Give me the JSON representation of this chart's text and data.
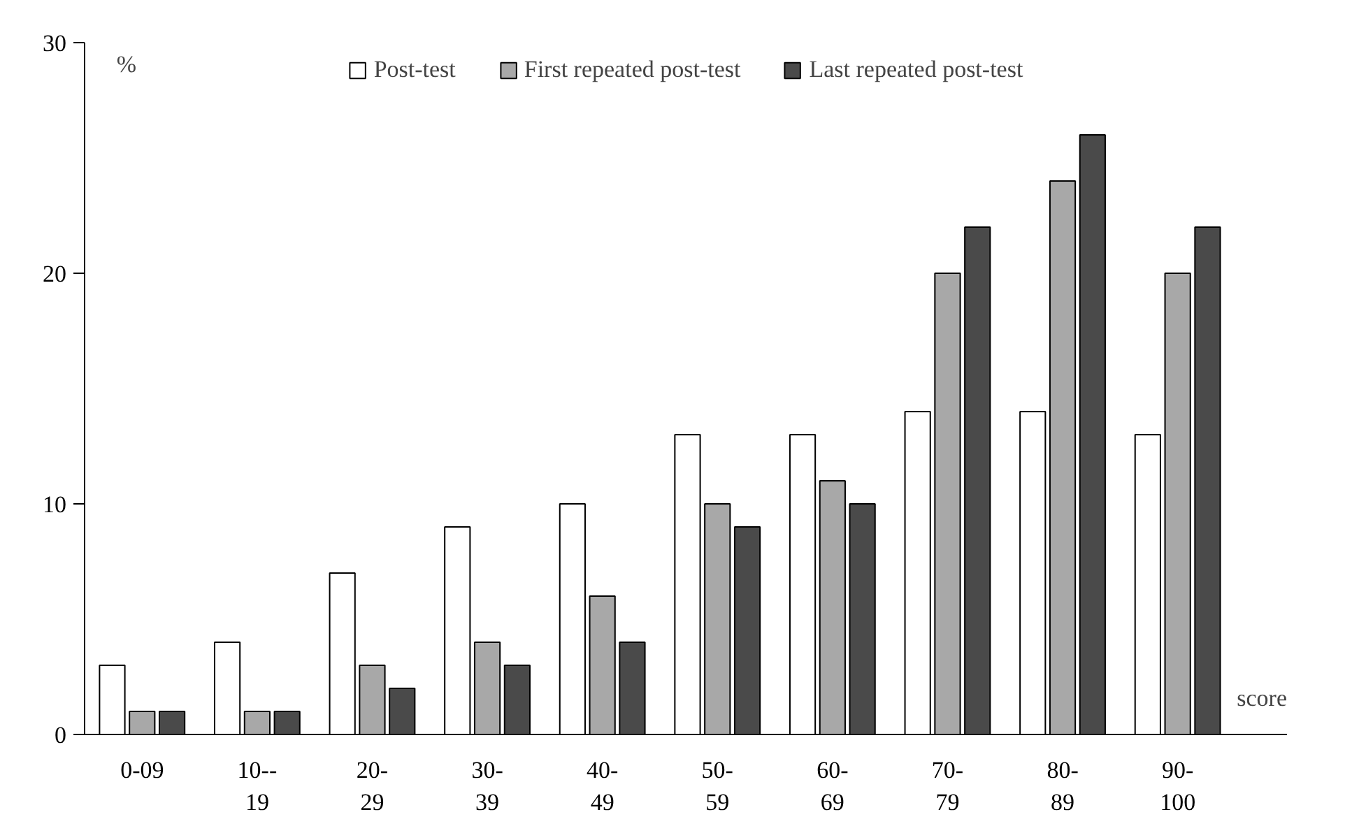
{
  "chart_data": {
    "type": "bar",
    "xlabel": "score",
    "ylabel": "%",
    "categories": [
      "0-09",
      "10--\n19",
      "20-\n29",
      "30-\n39",
      "40-\n49",
      "50-\n59",
      "60-\n69",
      "70-\n79",
      "80-\n89",
      "90-\n100"
    ],
    "series": [
      {
        "name": "Post-test",
        "color": "#ffffff",
        "values": [
          3,
          4,
          7,
          9,
          10,
          13,
          13,
          14,
          14,
          13
        ]
      },
      {
        "name": "First repeated post-test",
        "color": "#a8a8a8",
        "values": [
          1,
          1,
          3,
          4,
          6,
          10,
          11,
          20,
          24,
          20
        ]
      },
      {
        "name": "Last repeated post-test",
        "color": "#4a4a4a",
        "values": [
          1,
          1,
          2,
          3,
          4,
          9,
          10,
          22,
          26,
          22
        ]
      }
    ],
    "ylim": [
      0,
      30
    ],
    "yticks": [
      0,
      10,
      20,
      30
    ],
    "grid": false,
    "legend": "top"
  }
}
